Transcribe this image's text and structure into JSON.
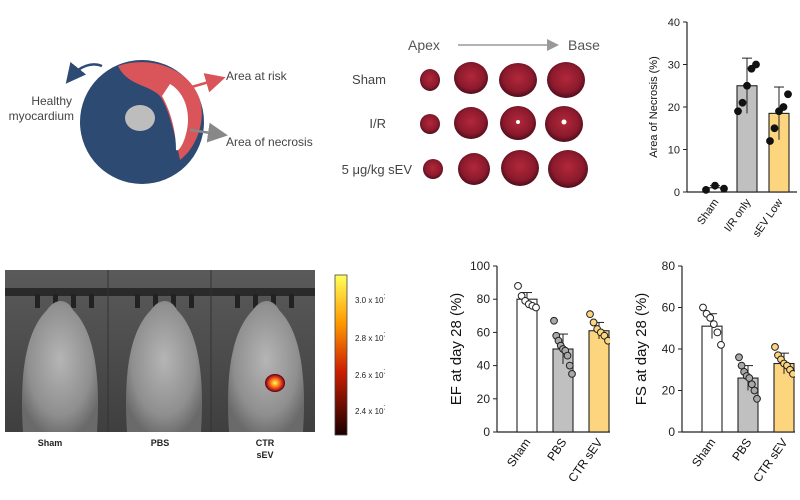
{
  "schematic": {
    "healthy_label_1": "Healthy",
    "healthy_label_2": "myocardium",
    "risk_label": "Area at risk",
    "necrosis_label": "Area of necrosis",
    "colors": {
      "healthy": "#2c4a72",
      "risk": "#d9555a",
      "necrosis": "#ffffff",
      "cavity": "#bdbdbd"
    }
  },
  "tissue_panel": {
    "apex_label": "Apex",
    "base_label": "Base",
    "rows": [
      {
        "label": "Sham"
      },
      {
        "label": "I/R"
      },
      {
        "label": "5 μg/kg sEV"
      }
    ]
  },
  "imaging_panel": {
    "mouse_labels": [
      "Sham",
      "PBS",
      "CTR",
      "sEV"
    ],
    "colorbar_ticks": [
      "3.0 x 10",
      "2.8 x 10",
      "2.6 x 10",
      "2.4 x 10"
    ],
    "colorbar_exponent": "7"
  },
  "chart_data": [
    {
      "type": "bar",
      "ylabel": "Area of Necrosis (%)",
      "categories": [
        "Sham",
        "I/R only",
        "sEV Low"
      ],
      "values": [
        1,
        25,
        18.5
      ],
      "errors": [
        0.5,
        6.5,
        6.2
      ],
      "colors": [
        "#ffffff",
        "#c0c0c0",
        "#fdd57e"
      ],
      "ylim": [
        0,
        40
      ],
      "yticks": [
        "0",
        "10",
        "20",
        "30",
        "40"
      ],
      "points": [
        [
          0.5,
          1.5,
          0.8
        ],
        [
          19,
          21,
          25,
          29,
          30
        ],
        [
          12,
          15,
          19,
          20,
          23
        ]
      ]
    },
    {
      "type": "bar",
      "ylabel": "EF at day 28 (%)",
      "categories": [
        "Sham",
        "PBS",
        "CTR sEV"
      ],
      "values": [
        80,
        50,
        61
      ],
      "errors": [
        4,
        9,
        5
      ],
      "colors": [
        "#ffffff",
        "#c0c0c0",
        "#fdd57e"
      ],
      "ylim": [
        0,
        100
      ],
      "yticks": [
        "0",
        "20",
        "40",
        "60",
        "80",
        "100"
      ],
      "points": [
        [
          88,
          82,
          79,
          77,
          76,
          75
        ],
        [
          67,
          58,
          55,
          52,
          50,
          49,
          46,
          40,
          35
        ],
        [
          71,
          66,
          62,
          60,
          58,
          55
        ]
      ]
    },
    {
      "type": "bar",
      "ylabel": "FS at day 28 (%)",
      "categories": [
        "Sham",
        "PBS",
        "CTR sEV"
      ],
      "values": [
        51,
        26,
        33
      ],
      "errors": [
        6,
        6,
        5
      ],
      "colors": [
        "#ffffff",
        "#c0c0c0",
        "#fdd57e"
      ],
      "ylim": [
        0,
        80
      ],
      "yticks": [
        "0",
        "20",
        "40",
        "60",
        "80"
      ],
      "points": [
        [
          60,
          57,
          55,
          52,
          48,
          42
        ],
        [
          36,
          32,
          29,
          27,
          26,
          23,
          20,
          16
        ],
        [
          41,
          37,
          35,
          33,
          32,
          30,
          28
        ]
      ]
    }
  ]
}
